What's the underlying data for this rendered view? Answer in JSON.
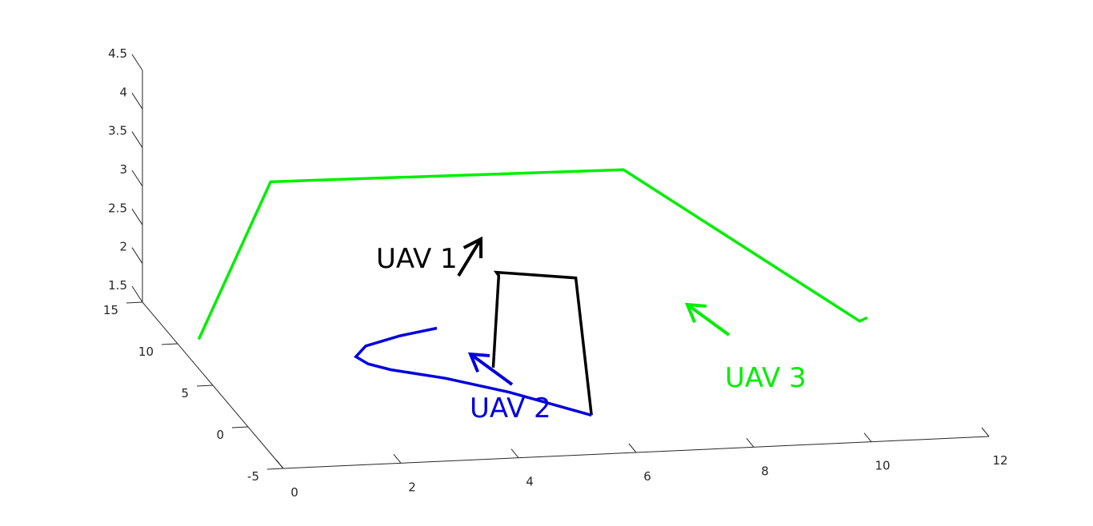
{
  "chart_data": {
    "type": "line3d",
    "axes": {
      "x": {
        "ticks": [
          0,
          2,
          4,
          6,
          8,
          10,
          12
        ],
        "tick_labels": [
          "0",
          "2",
          "4",
          "6",
          "8",
          "10",
          "12"
        ],
        "range": [
          0,
          12
        ]
      },
      "y": {
        "ticks": [
          -5,
          0,
          5,
          10,
          15
        ],
        "tick_labels": [
          "-5",
          "0",
          "5",
          "10",
          "15"
        ],
        "range": [
          -5,
          15
        ]
      },
      "z": {
        "ticks": [
          1.5,
          2,
          2.5,
          3,
          3.5,
          4,
          4.5
        ],
        "tick_labels": [
          "1.5",
          "2",
          "2.5",
          "3",
          "3.5",
          "4",
          "4.5"
        ],
        "range": [
          1.5,
          4.5
        ]
      }
    },
    "grid": false,
    "series": [
      {
        "label": "UAV 1",
        "color": "#000000",
        "path_screen_hint": "segmented line",
        "points": [
          {
            "x": 4.3,
            "y": 1.1,
            "z": 2.0
          },
          {
            "x": 5.4,
            "y": 9.5,
            "z": 2.25
          },
          {
            "x": 5.6,
            "y": 11.5,
            "z": 2.07
          },
          {
            "x": 6.95,
            "y": 11.5,
            "z": 1.95
          },
          {
            "x": 5.84,
            "y": 0.0,
            "z": 1.45
          }
        ]
      },
      {
        "label": "UAV 2",
        "color": "#0000dd",
        "points": [
          {
            "x": 5.84,
            "y": 0.0,
            "z": 1.45
          },
          {
            "x": 4.7,
            "y": 2.2,
            "z": 1.55
          },
          {
            "x": 3.8,
            "y": 3.7,
            "z": 1.6
          },
          {
            "x": 3.0,
            "y": 4.8,
            "z": 1.62
          },
          {
            "x": 2.7,
            "y": 5.5,
            "z": 1.63
          },
          {
            "x": 2.6,
            "y": 6.4,
            "z": 1.63
          },
          {
            "x": 2.9,
            "y": 7.5,
            "z": 1.64
          },
          {
            "x": 3.6,
            "y": 8.5,
            "z": 1.64
          },
          {
            "x": 4.3,
            "y": 9.1,
            "z": 1.65
          }
        ]
      },
      {
        "label": "UAV 3",
        "color": "#00ee00",
        "points": [
          {
            "x": 0.0,
            "y": 7.0,
            "z": 1.88
          },
          {
            "x": 2.0,
            "y": 13.5,
            "z": 3.15
          },
          {
            "x": 8.0,
            "y": 13.5,
            "z": 3.1
          },
          {
            "x": 11.0,
            "y": 5.0,
            "z": 1.95
          },
          {
            "x": 11.15,
            "y": 5.2,
            "z": 1.97
          }
        ]
      }
    ],
    "annotations": [
      {
        "text": "UAV 1",
        "color": "#000000",
        "arrow_direction": "up-right"
      },
      {
        "text": "UAV 2",
        "color": "#0000dd",
        "arrow_direction": "up-left"
      },
      {
        "text": "UAV 3",
        "color": "#00ee00",
        "arrow_direction": "up-left"
      }
    ]
  }
}
